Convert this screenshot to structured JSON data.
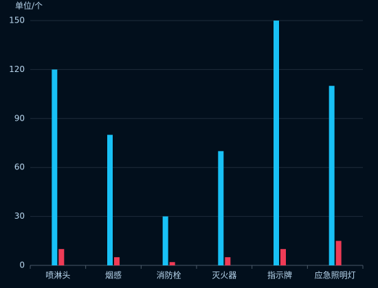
{
  "chart_data": {
    "type": "bar",
    "y_label": "单位/个",
    "categories": [
      "喷淋头",
      "烟感",
      "消防栓",
      "灭火器",
      "指示牌",
      "应急照明灯"
    ],
    "series": [
      {
        "color": "#18c1f6",
        "values": [
          120,
          80,
          30,
          70,
          150,
          110
        ]
      },
      {
        "color": "#ef3b56",
        "values": [
          10,
          5,
          2,
          5,
          10,
          15
        ]
      }
    ],
    "ylim": [
      0,
      150
    ],
    "yticks": [
      0,
      30,
      60,
      90,
      120,
      150
    ],
    "grid": true
  }
}
